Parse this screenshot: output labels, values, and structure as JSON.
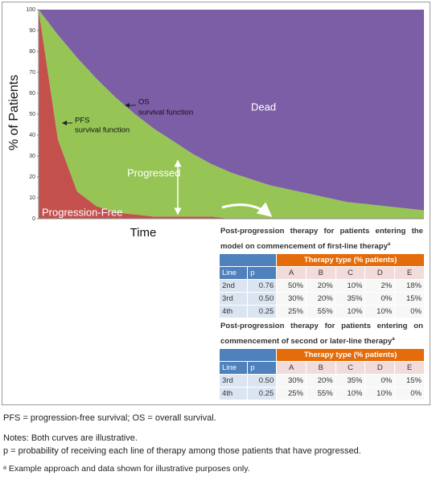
{
  "chart_data": {
    "type": "stacked_area",
    "ylabel": "% of Patients",
    "xlabel": "Time",
    "categories": [
      null,
      null,
      null,
      null,
      null,
      null,
      null,
      null,
      null,
      null,
      null,
      null,
      null,
      null,
      null,
      null,
      null,
      null,
      null,
      null,
      null
    ],
    "series": [
      {
        "name": "Progression-Free",
        "color": "#c4504e",
        "values": [
          100,
          38,
          13,
          6,
          3,
          2,
          1,
          1,
          1,
          1,
          0,
          0,
          0,
          0,
          0,
          0,
          0,
          0,
          0,
          0,
          0
        ]
      },
      {
        "name": "Progressed",
        "color": "#96c555",
        "values": [
          0,
          50,
          64,
          61,
          55,
          48,
          42,
          36,
          30,
          25,
          22,
          19,
          16,
          14,
          12,
          10,
          8,
          7,
          6,
          5,
          4
        ]
      },
      {
        "name": "Dead",
        "color": "#7c5ea6",
        "values": [
          0,
          12,
          23,
          33,
          42,
          50,
          57,
          63,
          69,
          74,
          78,
          81,
          84,
          86,
          88,
          90,
          92,
          93,
          94,
          95,
          96
        ]
      }
    ],
    "ylim": [
      0,
      100
    ],
    "yticks": [
      0,
      10,
      20,
      30,
      40,
      50,
      60,
      70,
      80,
      90,
      100
    ],
    "pfs_annotation": [
      "PFS",
      "survival function"
    ],
    "os_annotation": [
      "OS",
      "survival function"
    ]
  },
  "tables": [
    {
      "title": "Post-progression therapy for patients entering the model on commencement of first-line therapy",
      "title_sup": "a",
      "header": "Therapy type (% patients)",
      "columns": [
        "Line",
        "p",
        "A",
        "B",
        "C",
        "D",
        "E"
      ],
      "rows": [
        [
          "2nd",
          "0.76",
          "50%",
          "20%",
          "10%",
          "2%",
          "18%"
        ],
        [
          "3rd",
          "0.50",
          "30%",
          "20%",
          "35%",
          "0%",
          "15%"
        ],
        [
          "4th",
          "0.25",
          "25%",
          "55%",
          "10%",
          "10%",
          "0%"
        ]
      ]
    },
    {
      "title": "Post-progression therapy for patients entering on commencement of second or later-line therapy",
      "title_sup": "a",
      "header": "Therapy type (% patients)",
      "columns": [
        "Line",
        "p",
        "A",
        "B",
        "C",
        "D",
        "E"
      ],
      "rows": [
        [
          "3rd",
          "0.50",
          "30%",
          "20%",
          "35%",
          "0%",
          "15%"
        ],
        [
          "4th",
          "0.25",
          "25%",
          "55%",
          "10%",
          "10%",
          "0%"
        ]
      ]
    }
  ],
  "footnotes": [
    "PFS = progression-free survival; OS = overall survival.",
    "Notes: Both curves are illustrative.",
    "p = probability of receiving each line of therapy among those patients that have progressed.",
    "ᵃ Example approach and data shown for illustrative purposes only."
  ]
}
